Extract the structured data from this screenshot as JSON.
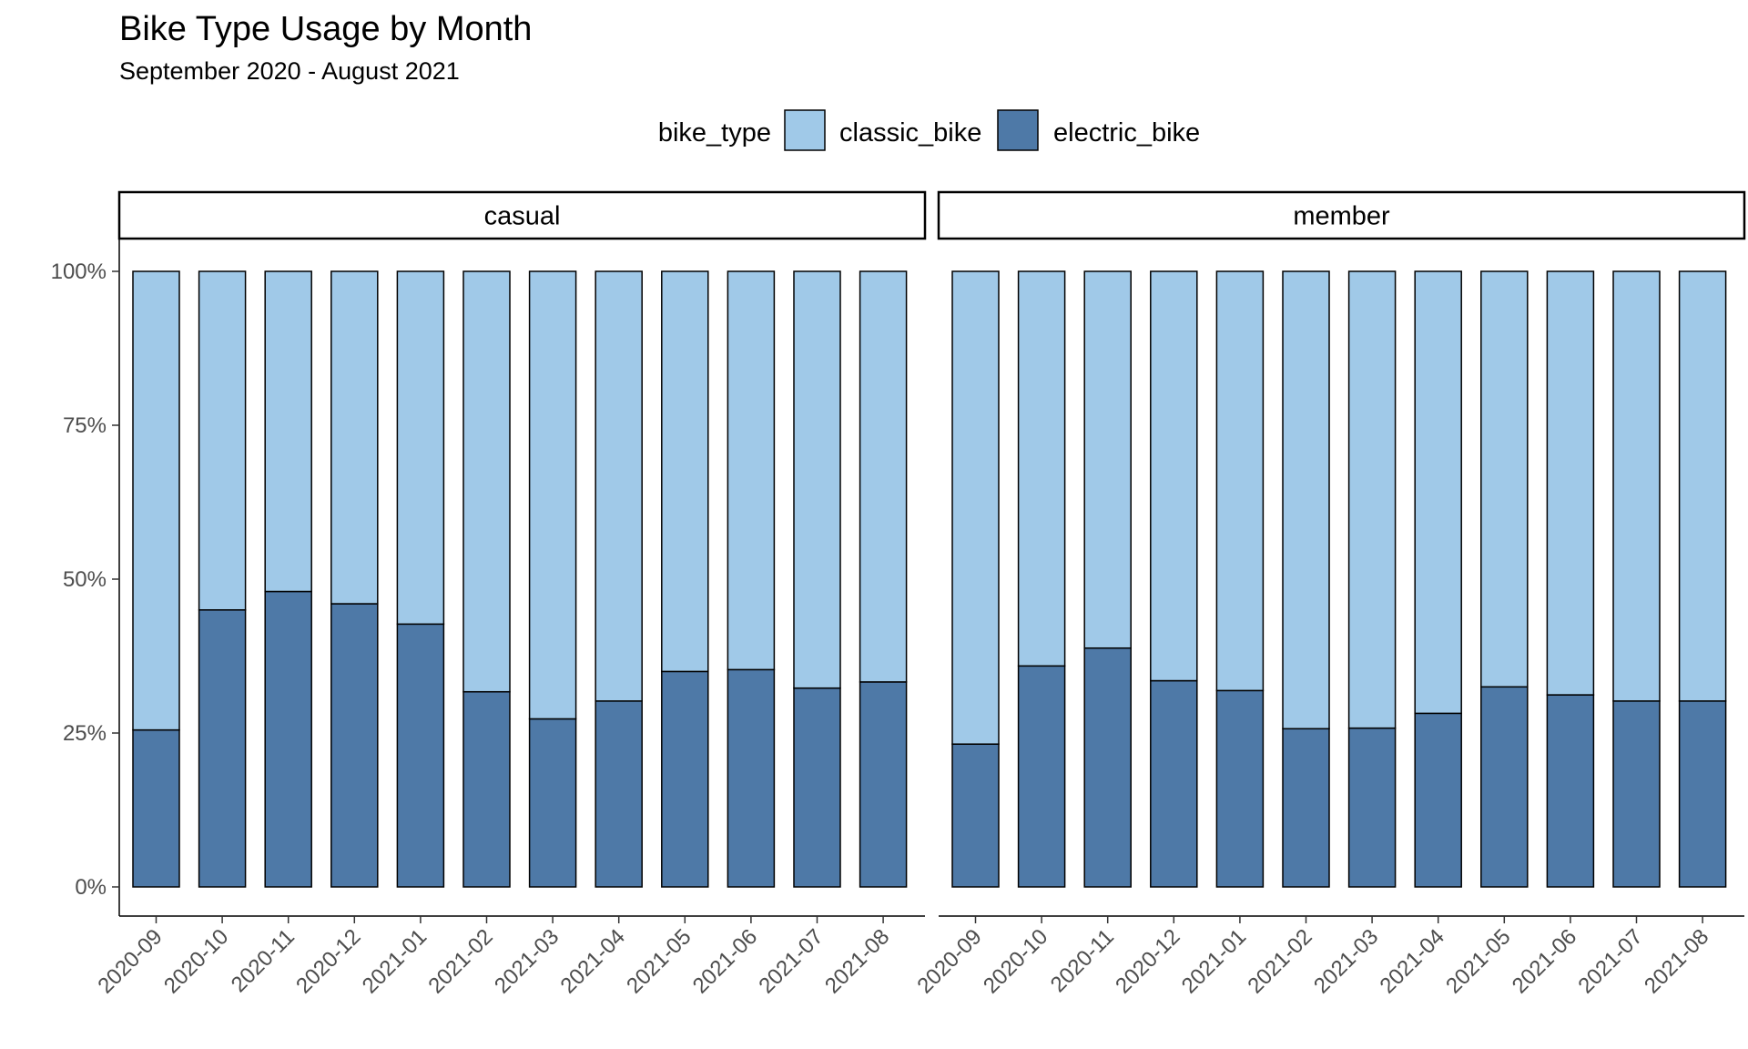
{
  "chart_data": {
    "type": "bar",
    "stacked": true,
    "position": "fill",
    "title": "Bike Type Usage by Month",
    "subtitle": "September 2020 - August 2021",
    "legend": {
      "title": "bike_type",
      "placement": "top",
      "entries": [
        {
          "name": "classic_bike",
          "color": "#a0c9e8"
        },
        {
          "name": "electric_bike",
          "color": "#4e79a7"
        }
      ]
    },
    "categories": [
      "2020-09",
      "2020-10",
      "2020-11",
      "2020-12",
      "2021-01",
      "2021-02",
      "2021-03",
      "2021-04",
      "2021-05",
      "2021-06",
      "2021-07",
      "2021-08"
    ],
    "ylim": [
      0,
      1
    ],
    "y_ticks": [
      {
        "value": 0,
        "label": "0%"
      },
      {
        "value": 0.25,
        "label": "25%"
      },
      {
        "value": 0.5,
        "label": "50%"
      },
      {
        "value": 0.75,
        "label": "75%"
      },
      {
        "value": 1,
        "label": "100%"
      }
    ],
    "grid": false,
    "facets": [
      {
        "label": "casual",
        "series": [
          {
            "name": "electric_bike",
            "values": [
              0.255,
              0.45,
              0.48,
              0.46,
              0.427,
              0.317,
              0.273,
              0.302,
              0.35,
              0.353,
              0.323,
              0.333
            ]
          },
          {
            "name": "classic_bike",
            "values": [
              0.745,
              0.55,
              0.52,
              0.54,
              0.573,
              0.683,
              0.727,
              0.698,
              0.65,
              0.647,
              0.677,
              0.667
            ]
          }
        ]
      },
      {
        "label": "member",
        "series": [
          {
            "name": "electric_bike",
            "values": [
              0.232,
              0.359,
              0.388,
              0.335,
              0.319,
              0.257,
              0.258,
              0.282,
              0.325,
              0.312,
              0.302,
              0.302
            ]
          },
          {
            "name": "classic_bike",
            "values": [
              0.768,
              0.641,
              0.612,
              0.665,
              0.681,
              0.743,
              0.742,
              0.718,
              0.675,
              0.688,
              0.698,
              0.698
            ]
          }
        ]
      }
    ]
  }
}
